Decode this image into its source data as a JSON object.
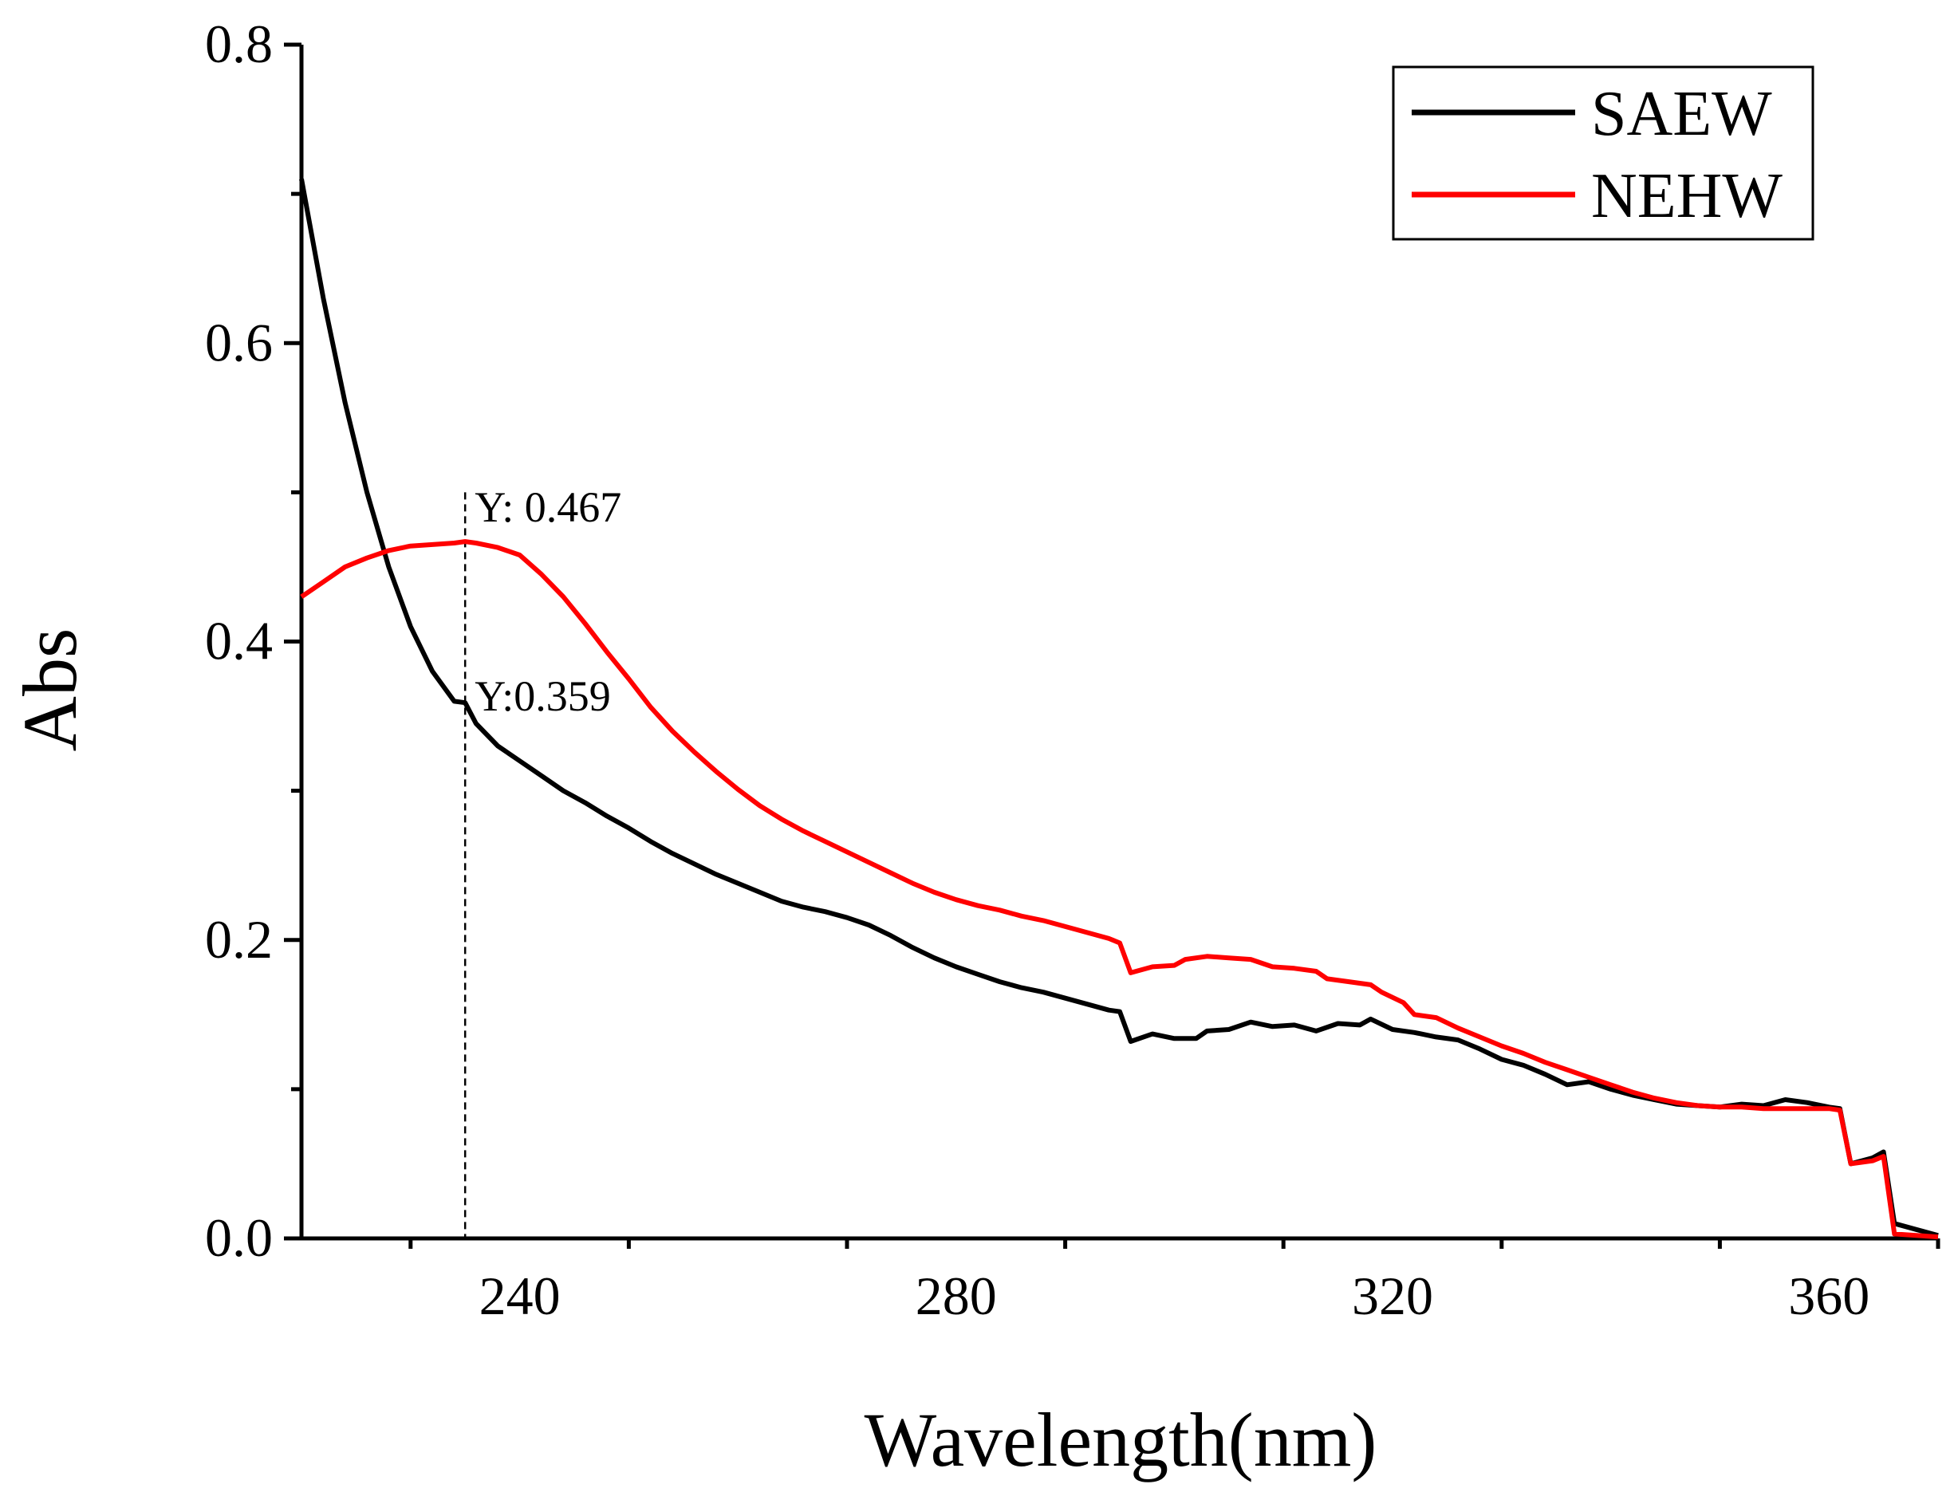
{
  "chart_data": {
    "type": "line",
    "title": "",
    "xlabel": "Wavelength(nm)",
    "ylabel": "Abs",
    "xlim": [
      220,
      370
    ],
    "ylim": [
      0.0,
      0.8
    ],
    "x_ticks": [
      240,
      280,
      320,
      360
    ],
    "x_tick_labels": [
      "240",
      "280",
      "320",
      "360"
    ],
    "y_ticks": [
      0.0,
      0.2,
      0.4,
      0.6,
      0.8
    ],
    "y_tick_labels": [
      "0.0",
      "0.2",
      "0.4",
      "0.6",
      "0.8"
    ],
    "grid": false,
    "legend_position": "top-right",
    "series": [
      {
        "name": "SAEW",
        "color": "#000000",
        "points": [
          [
            220,
            0.71
          ],
          [
            222,
            0.63
          ],
          [
            224,
            0.56
          ],
          [
            226,
            0.5
          ],
          [
            228,
            0.45
          ],
          [
            230,
            0.41
          ],
          [
            232,
            0.38
          ],
          [
            234,
            0.36
          ],
          [
            235,
            0.359
          ],
          [
            236,
            0.345
          ],
          [
            238,
            0.33
          ],
          [
            240,
            0.32
          ],
          [
            242,
            0.31
          ],
          [
            244,
            0.3
          ],
          [
            246,
            0.292
          ],
          [
            248,
            0.283
          ],
          [
            250,
            0.275
          ],
          [
            252,
            0.266
          ],
          [
            254,
            0.258
          ],
          [
            256,
            0.251
          ],
          [
            258,
            0.244
          ],
          [
            260,
            0.238
          ],
          [
            262,
            0.232
          ],
          [
            264,
            0.226
          ],
          [
            266,
            0.222
          ],
          [
            268,
            0.219
          ],
          [
            270,
            0.215
          ],
          [
            272,
            0.21
          ],
          [
            274,
            0.203
          ],
          [
            276,
            0.195
          ],
          [
            278,
            0.188
          ],
          [
            280,
            0.182
          ],
          [
            282,
            0.177
          ],
          [
            284,
            0.172
          ],
          [
            286,
            0.168
          ],
          [
            288,
            0.165
          ],
          [
            290,
            0.161
          ],
          [
            292,
            0.157
          ],
          [
            294,
            0.153
          ],
          [
            295,
            0.152
          ],
          [
            296,
            0.132
          ],
          [
            298,
            0.137
          ],
          [
            300,
            0.134
          ],
          [
            302,
            0.134
          ],
          [
            303,
            0.139
          ],
          [
            305,
            0.14
          ],
          [
            307,
            0.145
          ],
          [
            309,
            0.142
          ],
          [
            311,
            0.143
          ],
          [
            313,
            0.139
          ],
          [
            315,
            0.144
          ],
          [
            317,
            0.143
          ],
          [
            318,
            0.147
          ],
          [
            320,
            0.14
          ],
          [
            322,
            0.138
          ],
          [
            324,
            0.135
          ],
          [
            326,
            0.133
          ],
          [
            328,
            0.127
          ],
          [
            330,
            0.12
          ],
          [
            332,
            0.116
          ],
          [
            334,
            0.11
          ],
          [
            336,
            0.103
          ],
          [
            338,
            0.105
          ],
          [
            340,
            0.1
          ],
          [
            342,
            0.096
          ],
          [
            344,
            0.093
          ],
          [
            346,
            0.09
          ],
          [
            348,
            0.089
          ],
          [
            350,
            0.088
          ],
          [
            352,
            0.09
          ],
          [
            354,
            0.089
          ],
          [
            356,
            0.093
          ],
          [
            358,
            0.091
          ],
          [
            360,
            0.088
          ],
          [
            361,
            0.087
          ],
          [
            362,
            0.05
          ],
          [
            364,
            0.054
          ],
          [
            365,
            0.058
          ],
          [
            366,
            0.01
          ],
          [
            368,
            0.006
          ],
          [
            370,
            0.002
          ]
        ]
      },
      {
        "name": "NEHW",
        "color": "#ff0000",
        "points": [
          [
            220,
            0.43
          ],
          [
            222,
            0.44
          ],
          [
            224,
            0.45
          ],
          [
            226,
            0.456
          ],
          [
            228,
            0.461
          ],
          [
            230,
            0.464
          ],
          [
            232,
            0.465
          ],
          [
            234,
            0.466
          ],
          [
            235,
            0.467
          ],
          [
            236,
            0.466
          ],
          [
            238,
            0.463
          ],
          [
            240,
            0.458
          ],
          [
            242,
            0.445
          ],
          [
            244,
            0.43
          ],
          [
            246,
            0.412
          ],
          [
            248,
            0.393
          ],
          [
            250,
            0.375
          ],
          [
            252,
            0.356
          ],
          [
            254,
            0.34
          ],
          [
            256,
            0.326
          ],
          [
            258,
            0.313
          ],
          [
            260,
            0.301
          ],
          [
            262,
            0.29
          ],
          [
            264,
            0.281
          ],
          [
            266,
            0.273
          ],
          [
            268,
            0.266
          ],
          [
            270,
            0.259
          ],
          [
            272,
            0.252
          ],
          [
            274,
            0.245
          ],
          [
            276,
            0.238
          ],
          [
            278,
            0.232
          ],
          [
            280,
            0.227
          ],
          [
            282,
            0.223
          ],
          [
            284,
            0.22
          ],
          [
            286,
            0.216
          ],
          [
            288,
            0.213
          ],
          [
            290,
            0.209
          ],
          [
            292,
            0.205
          ],
          [
            294,
            0.201
          ],
          [
            295,
            0.198
          ],
          [
            296,
            0.178
          ],
          [
            298,
            0.182
          ],
          [
            300,
            0.183
          ],
          [
            301,
            0.187
          ],
          [
            303,
            0.189
          ],
          [
            305,
            0.188
          ],
          [
            307,
            0.187
          ],
          [
            309,
            0.182
          ],
          [
            311,
            0.181
          ],
          [
            313,
            0.179
          ],
          [
            314,
            0.174
          ],
          [
            316,
            0.172
          ],
          [
            318,
            0.17
          ],
          [
            319,
            0.165
          ],
          [
            321,
            0.158
          ],
          [
            322,
            0.15
          ],
          [
            324,
            0.148
          ],
          [
            326,
            0.141
          ],
          [
            328,
            0.135
          ],
          [
            330,
            0.129
          ],
          [
            332,
            0.124
          ],
          [
            334,
            0.118
          ],
          [
            336,
            0.113
          ],
          [
            338,
            0.108
          ],
          [
            340,
            0.103
          ],
          [
            342,
            0.098
          ],
          [
            344,
            0.094
          ],
          [
            346,
            0.091
          ],
          [
            348,
            0.089
          ],
          [
            350,
            0.088
          ],
          [
            352,
            0.088
          ],
          [
            354,
            0.087
          ],
          [
            356,
            0.087
          ],
          [
            358,
            0.087
          ],
          [
            360,
            0.087
          ],
          [
            361,
            0.086
          ],
          [
            362,
            0.05
          ],
          [
            364,
            0.052
          ],
          [
            365,
            0.055
          ],
          [
            366,
            0.003
          ],
          [
            368,
            0.002
          ],
          [
            370,
            0.001
          ]
        ]
      }
    ],
    "annotations": [
      {
        "text": "Y: 0.467",
        "x": 235,
        "y": 0.467
      },
      {
        "text": "Y:0.359",
        "x": 235,
        "y": 0.359
      }
    ]
  }
}
